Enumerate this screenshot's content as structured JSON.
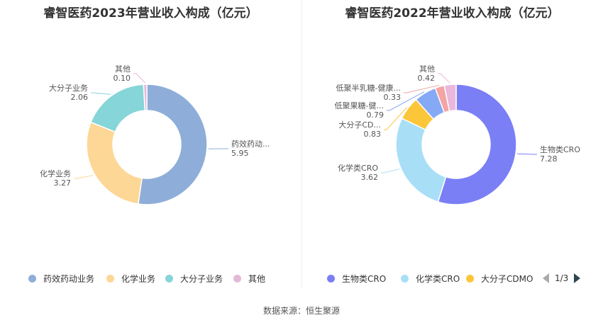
{
  "chart_data": [
    {
      "type": "pie",
      "donut": true,
      "title": "睿智医药2023年营业收入构成（亿元）",
      "categories": [
        "药效药动业务",
        "化学业务",
        "大分子业务",
        "其他"
      ],
      "labels": [
        "药效药动...",
        "化学业务",
        "大分子业务",
        "其他"
      ],
      "values": [
        5.95,
        3.27,
        2.06,
        0.1
      ],
      "value_labels": [
        "5.95",
        "3.27",
        "2.06",
        "0.10"
      ],
      "colors": [
        "#8eaed9",
        "#fdd795",
        "#86d5d8",
        "#e5b8d8"
      ],
      "legend": [
        "药效药动业务",
        "化学业务",
        "大分子业务",
        "其他"
      ]
    },
    {
      "type": "pie",
      "donut": true,
      "title": "睿智医药2022年营业收入构成（亿元）",
      "categories": [
        "生物类CRO",
        "化学类CRO",
        "大分子CDMO",
        "低聚果糖-健康...",
        "低聚半乳糖-健康...",
        "其他"
      ],
      "labels": [
        "生物类CRO",
        "化学类CRO",
        "大分子CD...",
        "低聚果糖-健...",
        "低聚半乳糖-健康...",
        "其他"
      ],
      "values": [
        7.28,
        3.62,
        0.83,
        0.79,
        0.33,
        0.42
      ],
      "value_labels": [
        "7.28",
        "3.62",
        "0.83",
        "0.79",
        "0.33",
        "0.42"
      ],
      "colors": [
        "#7b7ff5",
        "#a8dff7",
        "#fcc63a",
        "#86a9f5",
        "#f5a3a3",
        "#e9b8dc"
      ],
      "legend": [
        "生物类CRO",
        "化学类CRO",
        "大分子CDMO"
      ],
      "legend_page": "1/3"
    }
  ],
  "source": "数据来源：恒生聚源"
}
